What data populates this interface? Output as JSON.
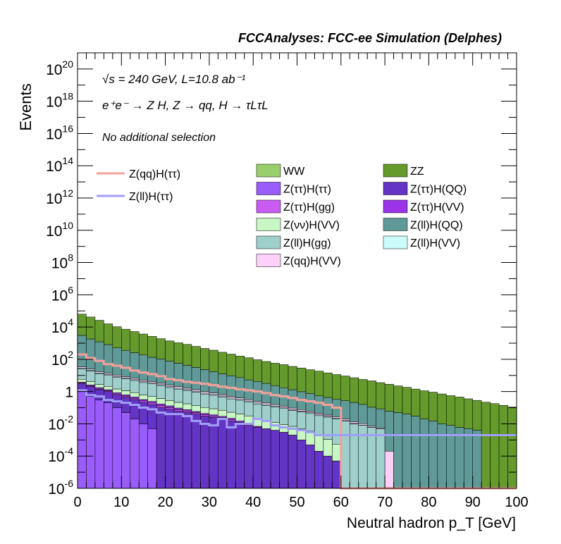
{
  "header": {
    "title": "FCCAnalyses: FCC-ee Simulation (Delphes)"
  },
  "annotations": {
    "line1": "√s = 240 GeV, L=10.8 ab⁻¹",
    "line2": "e⁺e⁻ → Z H, Z → qq, H → τLτL",
    "line3": "No additional selection"
  },
  "chart_data": {
    "type": "stacked histogram",
    "xlabel": "Neutral hadron p_T [GeV]",
    "ylabel": "Events",
    "xlim": [
      0,
      100
    ],
    "ylim": [
      1e-06,
      1e+21
    ],
    "log_y": true,
    "x_tick_labels": [
      "0",
      "10",
      "20",
      "30",
      "40",
      "50",
      "60",
      "70",
      "80",
      "90",
      "100"
    ],
    "y_tick_labels": [
      "10^-6",
      "10^-4",
      "10^-2",
      "1",
      "10^2",
      "10^4",
      "10^6",
      "10^8",
      "10^10",
      "10^12",
      "10^14",
      "10^16",
      "10^18",
      "10^20"
    ],
    "bin_width": 2,
    "legend_placement": "top, three columns",
    "signal_series": [
      {
        "name": "Z(qq)H(ττ)",
        "color": "#f4a09a",
        "values": [
          200,
          120,
          80,
          50,
          40,
          30,
          20,
          15,
          12,
          9,
          6,
          5,
          4,
          3.5,
          3,
          2.5,
          2,
          1.7,
          1.4,
          1.2,
          1,
          0.8,
          0.6,
          0.5,
          0.4,
          0.3,
          0.25,
          0.2,
          0.15,
          0.1,
          1e-07,
          1e-07,
          1e-07,
          1e-07,
          1e-07,
          1e-07,
          1e-07,
          1e-07,
          1e-07,
          1e-07,
          1e-07,
          1e-07,
          1e-07,
          1e-07,
          1e-07,
          1e-07,
          1e-07,
          1e-07,
          1e-07,
          1e-07
        ]
      },
      {
        "name": "Z(ll)H(ττ)",
        "color": "#9f9ff5",
        "values": [
          1.2,
          0.6,
          0.5,
          0.3,
          0.25,
          0.2,
          0.15,
          0.1,
          0.08,
          0.05,
          0.04,
          0.04,
          0.03,
          0.015,
          0.01,
          0.008,
          0.02,
          0.006,
          0.01,
          0.01,
          0.02,
          0.015,
          0.008,
          0.006,
          0.005,
          0.004,
          0.003,
          0.002,
          0.002,
          0.002,
          0.002,
          0.002,
          0.002,
          0.002,
          0.002,
          0.002,
          0.002,
          0.002,
          0.002,
          0.002,
          0.002,
          0.002,
          0.002,
          0.002,
          0.002,
          0.002,
          0.002,
          0.002,
          0.002,
          0.002
        ]
      }
    ],
    "background_series": [
      {
        "name": "Z(ττ)H(ττ)",
        "color": "#9a5cfa",
        "values": [
          1,
          0.5,
          0.3,
          0.2,
          0.1,
          0.05,
          0.02,
          0.01,
          0.005,
          1e-07,
          1e-07,
          1e-07,
          1e-07,
          1e-07,
          1e-07,
          1e-07,
          1e-07,
          1e-07,
          1e-07,
          1e-07,
          1e-07,
          1e-07,
          1e-07,
          1e-07,
          1e-07,
          1e-07,
          1e-07,
          1e-07,
          1e-07,
          1e-07,
          1e-07,
          1e-07,
          1e-07,
          1e-07,
          1e-07,
          1e-07,
          1e-07,
          1e-07,
          1e-07,
          1e-07,
          1e-07,
          1e-07,
          1e-07,
          1e-07,
          1e-07,
          1e-07,
          1e-07,
          1e-07,
          1e-07,
          1e-07
        ]
      },
      {
        "name": "Z(ττ)H(QQ)",
        "color": "#6434c4",
        "values": [
          2,
          1.5,
          1,
          0.8,
          0.5,
          0.4,
          0.3,
          0.2,
          0.15,
          0.1,
          0.08,
          0.06,
          0.05,
          0.04,
          0.03,
          0.025,
          0.02,
          0.015,
          0.01,
          0.008,
          0.006,
          0.005,
          0.004,
          0.003,
          0.002,
          0.001,
          0.0005,
          0.0002,
          0.0001,
          5e-05,
          1e-07,
          1e-07,
          1e-07,
          1e-07,
          1e-07,
          1e-07,
          1e-07,
          1e-07,
          1e-07,
          1e-07,
          1e-07,
          1e-07,
          1e-07,
          1e-07,
          1e-07,
          1e-07,
          1e-07,
          1e-07,
          1e-07,
          1e-07
        ]
      },
      {
        "name": "Z(ττ)H(gg)",
        "color": "#c85cf2",
        "values": [
          0.3,
          0.2,
          0.15,
          0.1,
          0.1,
          0.08,
          0.06,
          0.05,
          0.04,
          0.03,
          0.02,
          0.015,
          0.01,
          0.008,
          0.006,
          0.005,
          0.004,
          0.003,
          0.002,
          0.001,
          1e-07,
          1e-07,
          1e-07,
          1e-07,
          1e-07,
          1e-07,
          1e-07,
          1e-07,
          1e-07,
          1e-07,
          1e-07,
          1e-07,
          1e-07,
          1e-07,
          1e-07,
          1e-07,
          1e-07,
          1e-07,
          1e-07,
          1e-07,
          1e-07,
          1e-07,
          1e-07,
          1e-07,
          1e-07,
          1e-07,
          1e-07,
          1e-07,
          1e-07,
          1e-07
        ]
      },
      {
        "name": "Z(ττ)H(VV)",
        "color": "#9a34e8",
        "values": [
          0.5,
          0.4,
          0.3,
          0.2,
          0.15,
          0.1,
          0.08,
          0.06,
          0.05,
          0.04,
          0.03,
          0.02,
          0.015,
          0.01,
          0.008,
          0.006,
          0.005,
          0.004,
          0.003,
          0.002,
          0.001,
          1e-07,
          1e-07,
          1e-07,
          1e-07,
          1e-07,
          1e-07,
          1e-07,
          1e-07,
          1e-07,
          1e-07,
          1e-07,
          1e-07,
          1e-07,
          1e-07,
          1e-07,
          1e-07,
          1e-07,
          1e-07,
          1e-07,
          1e-07,
          1e-07,
          1e-07,
          1e-07,
          1e-07,
          1e-07,
          1e-07,
          1e-07,
          1e-07,
          1e-07
        ]
      },
      {
        "name": "Z(νν)H(VV)",
        "color": "#c8f7c5",
        "values": [
          2,
          1.5,
          1,
          0.8,
          0.6,
          0.5,
          0.4,
          0.3,
          0.25,
          0.2,
          0.15,
          0.12,
          0.1,
          0.08,
          0.06,
          0.05,
          0.04,
          0.03,
          0.025,
          0.02,
          0.015,
          0.01,
          0.008,
          0.006,
          0.005,
          0.004,
          0.003,
          0.002,
          0.001,
          0.0005,
          1e-07,
          1e-07,
          1e-07,
          1e-07,
          1e-07,
          1e-07,
          1e-07,
          1e-07,
          1e-07,
          1e-07,
          1e-07,
          1e-07,
          1e-07,
          1e-07,
          1e-07,
          1e-07,
          1e-07,
          1e-07,
          1e-07,
          1e-07
        ]
      },
      {
        "name": "Z(ll)H(gg)",
        "color": "#9fcfcb",
        "values": [
          20,
          15,
          10,
          8,
          6,
          5,
          4,
          3,
          2.5,
          2,
          1.5,
          1.2,
          1,
          0.8,
          0.6,
          0.5,
          0.4,
          0.3,
          0.25,
          0.2,
          0.15,
          0.12,
          0.1,
          0.08,
          0.06,
          0.05,
          0.04,
          0.03,
          0.025,
          0.02,
          0.015,
          0.01,
          0.008,
          0.006,
          0.005,
          1e-07,
          1e-07,
          1e-07,
          1e-07,
          1e-07,
          1e-07,
          1e-07,
          1e-07,
          1e-07,
          1e-07,
          1e-07,
          1e-07,
          1e-07,
          1e-07,
          1e-07
        ]
      },
      {
        "name": "Z(ll)H(VV)",
        "color": "#ccfbfb",
        "values": [
          3,
          2,
          1.5,
          1.2,
          1,
          0.8,
          0.6,
          0.5,
          0.4,
          0.3,
          0.25,
          0.2,
          0.15,
          0.12,
          0.1,
          0.08,
          0.06,
          0.05,
          0.04,
          0.03,
          0.025,
          0.02,
          0.015,
          0.01,
          0.008,
          0.006,
          0.005,
          0.004,
          0.003,
          0.002,
          0.001,
          0.0005,
          0.0002,
          0.0001,
          5e-05,
          1e-07,
          1e-07,
          1e-07,
          1e-07,
          1e-07,
          1e-07,
          1e-07,
          1e-07,
          1e-07,
          1e-07,
          1e-07,
          1e-07,
          1e-07,
          1e-07,
          1e-07
        ]
      },
      {
        "name": "Z(qq)H(VV)",
        "color": "#fcd0f8",
        "values": [
          5,
          4,
          3,
          2.5,
          2,
          1.5,
          1.2,
          1,
          0.8,
          0.6,
          0.5,
          0.4,
          0.3,
          0.25,
          0.2,
          0.15,
          0.12,
          0.1,
          0.08,
          0.06,
          0.05,
          0.04,
          0.03,
          0.025,
          0.02,
          0.015,
          0.01,
          0.008,
          0.006,
          0.005,
          0.004,
          0.003,
          0.002,
          0.001,
          0.0005,
          0.0002,
          1e-07,
          1e-07,
          1e-07,
          1e-07,
          1e-07,
          1e-07,
          1e-07,
          1e-07,
          1e-07,
          1e-07,
          1e-07,
          1e-07,
          1e-07,
          1e-07
        ]
      },
      {
        "name": "Z(ll)H(QQ)",
        "color": "#609a98",
        "values": [
          3000,
          1800,
          1200,
          800,
          500,
          350,
          250,
          180,
          130,
          100,
          75,
          55,
          40,
          30,
          22,
          16,
          12,
          9,
          7,
          5,
          4,
          3,
          2.2,
          1.6,
          1.2,
          0.9,
          0.7,
          0.5,
          0.4,
          0.3,
          0.25,
          0.2,
          0.15,
          0.1,
          0.08,
          0.06,
          0.05,
          0.04,
          0.03,
          0.02,
          0.015,
          0.01,
          0.008,
          0.006,
          0.005,
          0.004,
          1e-07,
          1e-07,
          1e-07,
          1e-07
        ]
      },
      {
        "name": "ZZ",
        "color": "#659a2c",
        "values": [
          60000,
          40000,
          25000,
          15000,
          10000,
          7000,
          5000,
          3500,
          2500,
          1800,
          1300,
          1000,
          800,
          600,
          450,
          350,
          260,
          200,
          150,
          120,
          90,
          70,
          55,
          45,
          35,
          28,
          22,
          18,
          14,
          11,
          9,
          7,
          5.5,
          4.5,
          3.5,
          2.8,
          2.2,
          1.8,
          1.4,
          1.1,
          0.9,
          0.7,
          0.55,
          0.45,
          0.35,
          0.28,
          0.22,
          0.18,
          0.14,
          0.11
        ]
      },
      {
        "name": "WW",
        "color": "#98ce6c",
        "values": [
          0.05,
          0.04,
          0.03,
          0.02,
          0.015,
          0.01,
          0.008,
          0.006,
          0.005,
          0.004,
          0.003,
          0.002,
          0.001,
          1e-07,
          1e-07,
          1e-07,
          1e-07,
          1e-07,
          1e-07,
          1e-07,
          1e-07,
          1e-07,
          1e-07,
          1e-07,
          1e-07,
          1e-07,
          1e-07,
          1e-07,
          1e-07,
          1e-07,
          1e-07,
          1e-07,
          1e-07,
          1e-07,
          1e-07,
          1e-07,
          1e-07,
          1e-07,
          1e-07,
          1e-07,
          1e-07,
          1e-07,
          1e-07,
          1e-07,
          1e-07,
          1e-07,
          1e-07,
          1e-07,
          1e-07,
          1e-07
        ]
      }
    ],
    "legend_order": [
      "WW",
      "ZZ",
      "Z(ττ)H(ττ)",
      "Z(ττ)H(QQ)",
      "Z(ττ)H(gg)",
      "Z(ττ)H(VV)",
      "Z(νν)H(VV)",
      "Z(ll)H(QQ)",
      "Z(ll)H(gg)",
      "Z(ll)H(VV)",
      "Z(qq)H(VV)"
    ]
  }
}
